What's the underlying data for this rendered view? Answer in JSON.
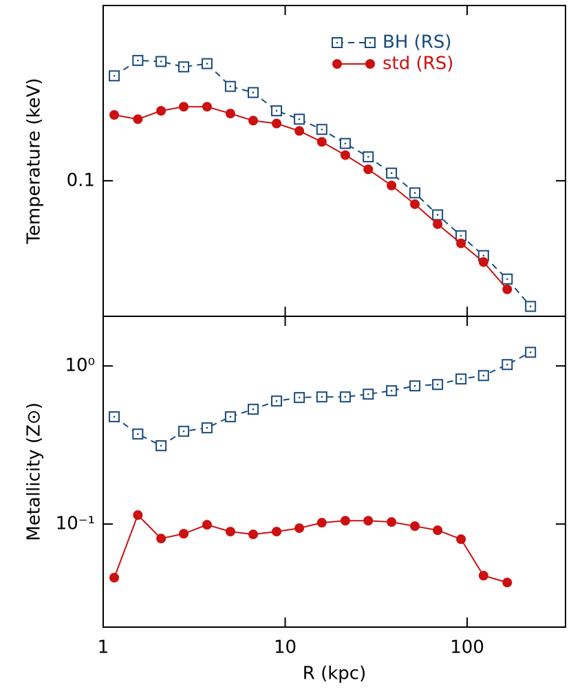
{
  "chart_data": [
    {
      "type": "line",
      "ylabel": "Temperature (keV)",
      "x": [
        1.15,
        1.55,
        2.08,
        2.77,
        3.72,
        5.0,
        6.67,
        8.97,
        11.96,
        15.9,
        21.4,
        28.6,
        38.4,
        51.6,
        68.8,
        92.5,
        123,
        166,
        223
      ],
      "series": [
        {
          "name": "BH (RS)",
          "color": "#174a7c",
          "linestyle": "dashed",
          "marker": "square",
          "values": [
            0.171,
            0.185,
            0.184,
            0.179,
            0.182,
            0.162,
            0.157,
            0.143,
            0.137,
            0.13,
            0.121,
            0.113,
            0.104,
            0.094,
            0.084,
            0.0755,
            0.0682,
            0.0605,
            0.0526
          ]
        },
        {
          "name": "std (RS)",
          "color": "#cc1111",
          "linestyle": "solid",
          "marker": "circle",
          "values": [
            0.14,
            0.137,
            0.143,
            0.146,
            0.146,
            0.141,
            0.136,
            0.134,
            0.129,
            0.122,
            0.114,
            0.106,
            0.0976,
            0.0887,
            0.0801,
            0.0726,
            0.066,
            0.0574,
            null
          ]
        }
      ],
      "xlim": [
        1,
        347
      ],
      "ylim": [
        0.05,
        0.245
      ],
      "yticks": [
        0.1
      ],
      "xlog": true,
      "ylog": true,
      "legend": "upper right"
    },
    {
      "type": "line",
      "ylabel": "Metallicity (Z⊙)",
      "xlabel": "R (kpc)",
      "x": [
        1.15,
        1.55,
        2.08,
        2.77,
        3.72,
        5.0,
        6.67,
        8.97,
        11.96,
        15.9,
        21.4,
        28.6,
        38.4,
        51.6,
        68.8,
        92.5,
        123,
        166,
        223
      ],
      "series": [
        {
          "name": "BH (RS)",
          "color": "#174a7c",
          "linestyle": "dashed",
          "marker": "square",
          "values": [
            0.477,
            0.371,
            0.313,
            0.386,
            0.406,
            0.477,
            0.532,
            0.6,
            0.631,
            0.637,
            0.637,
            0.663,
            0.697,
            0.748,
            0.763,
            0.827,
            0.869,
            1.02,
            1.22
          ]
        },
        {
          "name": "std (RS)",
          "color": "#cc1111",
          "linestyle": "solid",
          "marker": "circle",
          "values": [
            0.0458,
            0.114,
            0.081,
            0.0869,
            0.099,
            0.0896,
            0.0861,
            0.0896,
            0.0942,
            0.102,
            0.105,
            0.105,
            0.103,
            0.097,
            0.0914,
            0.0802,
            0.0472,
            0.0427,
            null
          ]
        }
      ],
      "xlim": [
        1,
        347
      ],
      "ylim": [
        0.0223,
        2.06
      ],
      "yticks": [
        {
          "value": 0.1,
          "label": "10⁻¹"
        },
        {
          "value": 1,
          "label": "10⁰"
        }
      ],
      "xticks": [
        1,
        10,
        100
      ],
      "xlog": true,
      "ylog": true
    }
  ]
}
